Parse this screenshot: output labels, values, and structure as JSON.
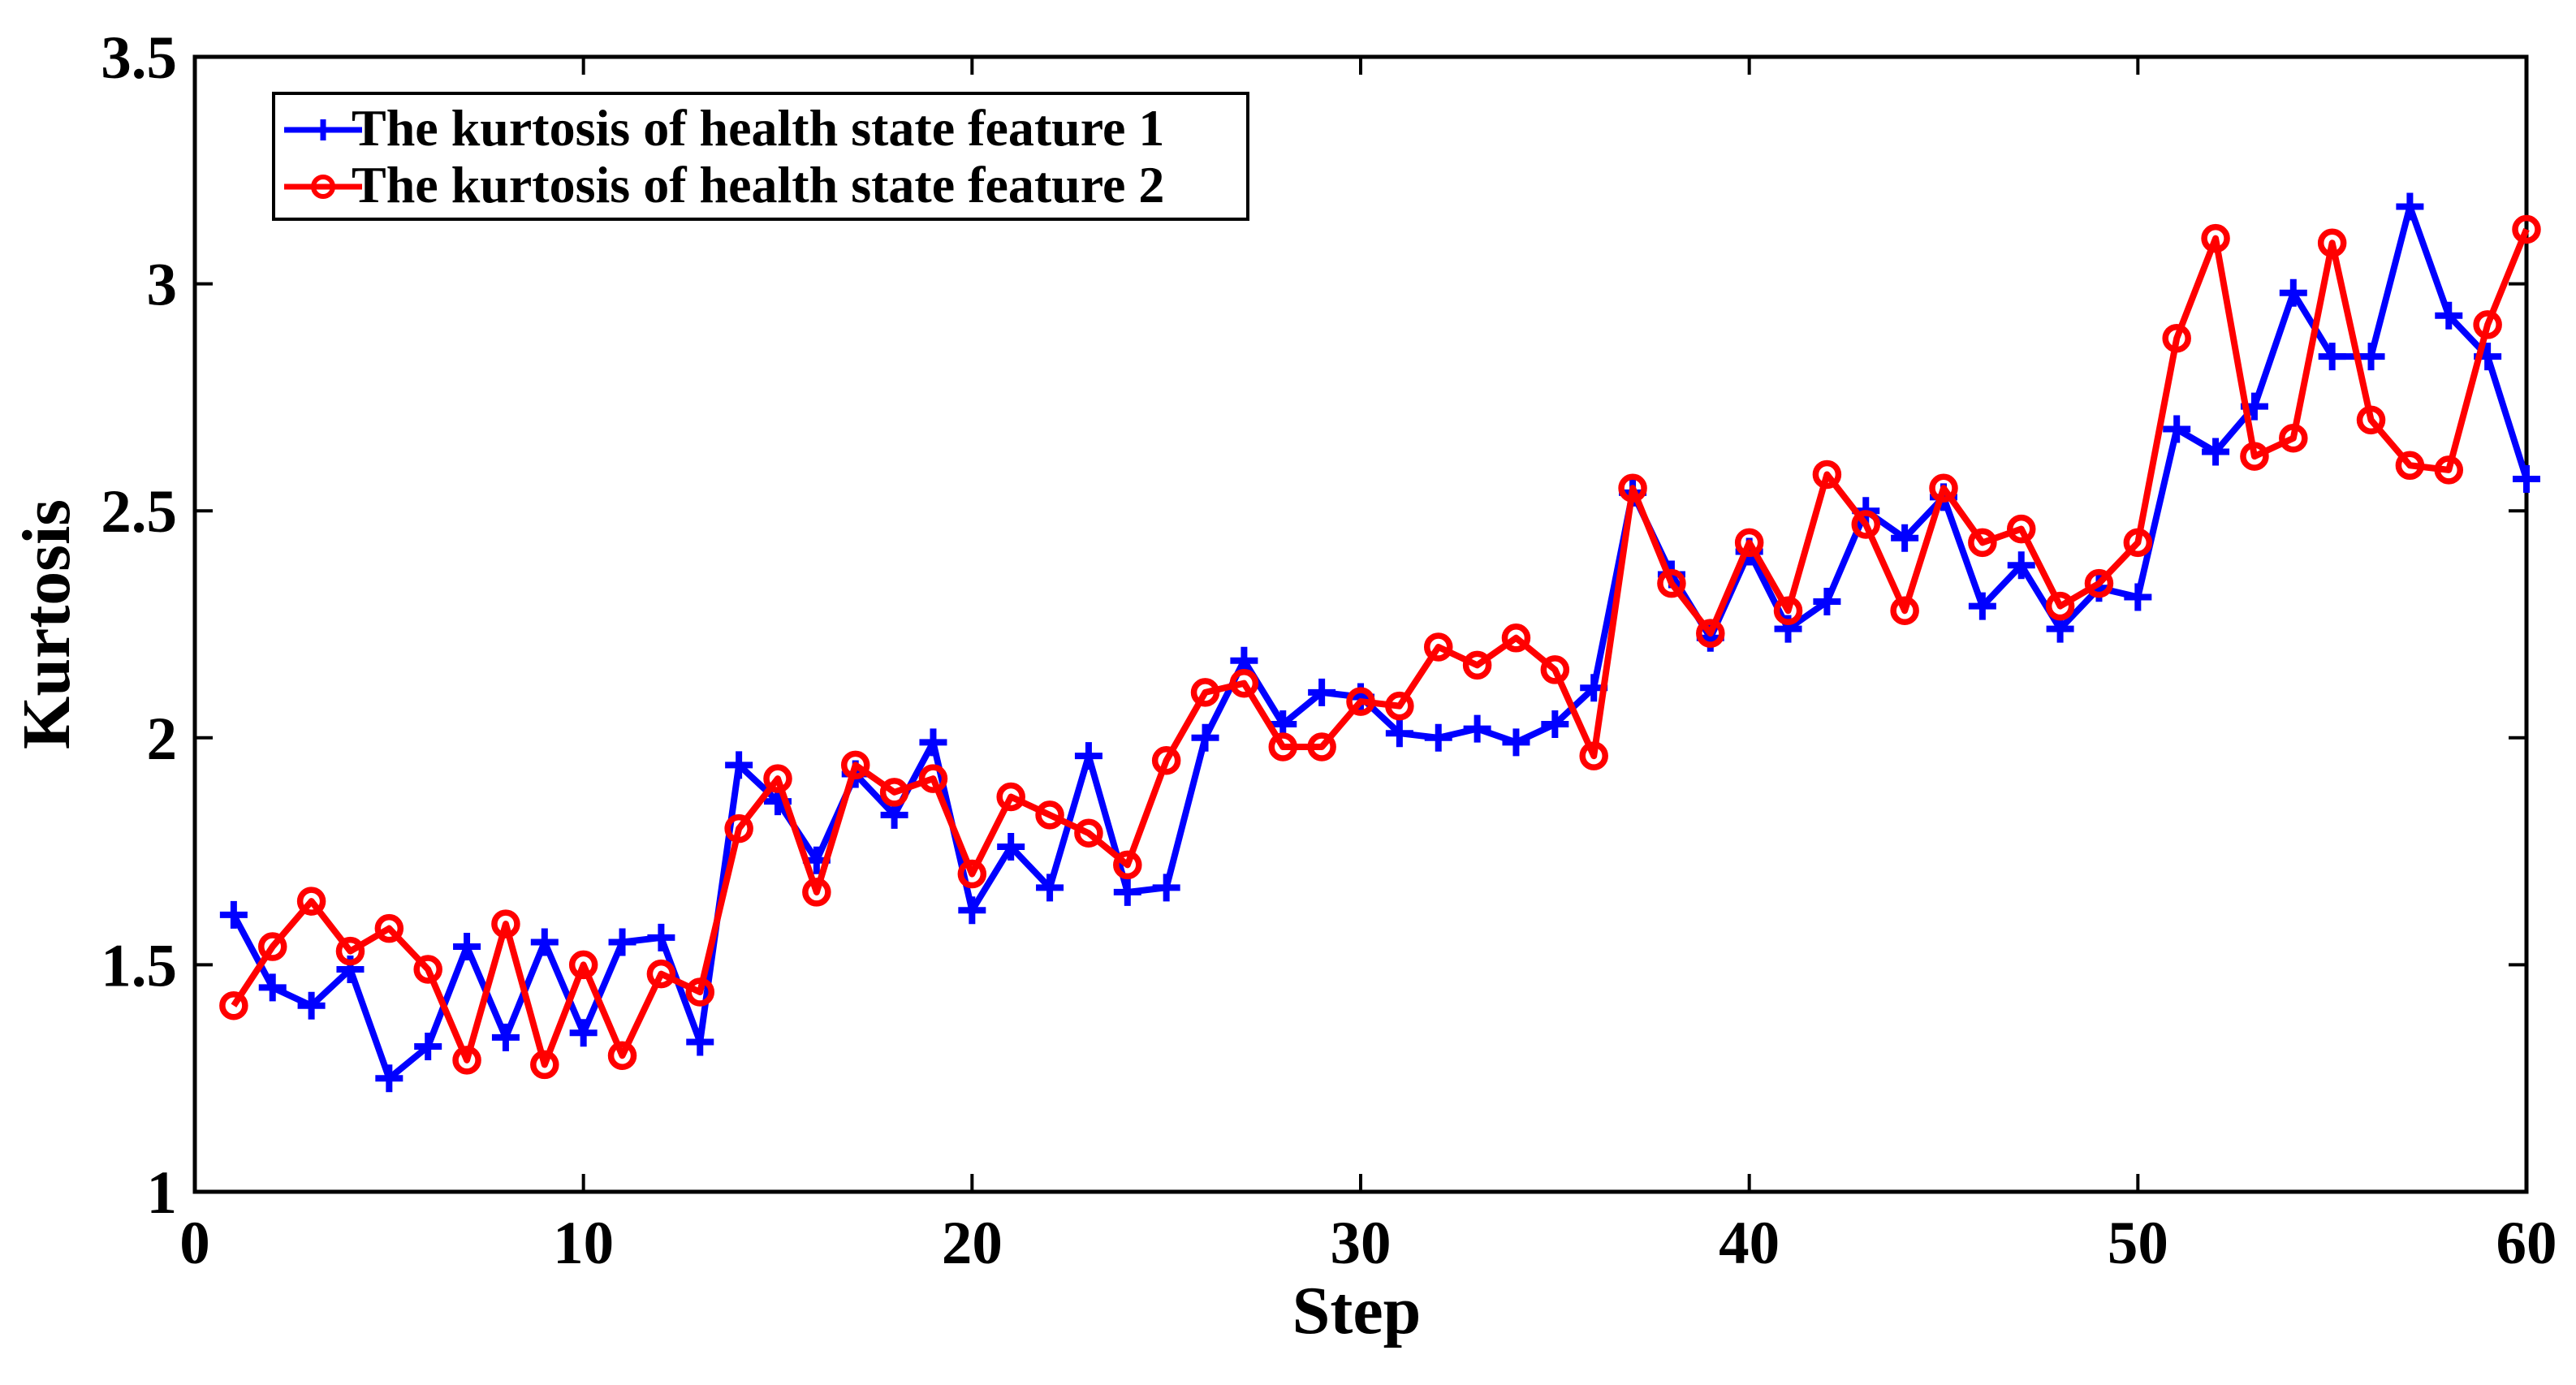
{
  "figure": {
    "background": "#ffffff",
    "text_color": "#000000"
  },
  "legend": {
    "position": "top-left",
    "items": [
      {
        "label": "The kurtosis of health state feature 1",
        "color": "#0000ff",
        "marker": "plus"
      },
      {
        "label": "The kurtosis of health state feature 2",
        "color": "#ff0000",
        "marker": "circle"
      }
    ]
  },
  "chart_data": {
    "type": "line",
    "title": "",
    "xlabel": "Step",
    "ylabel": "Kurtosis",
    "xlim": [
      0,
      60
    ],
    "ylim": [
      1,
      3.5
    ],
    "xticks": [
      0,
      10,
      20,
      30,
      40,
      50,
      60
    ],
    "xtick_labels": [
      "0",
      "10",
      "20",
      "30",
      "40",
      "50",
      "60"
    ],
    "yticks": [
      1,
      1.5,
      2,
      2.5,
      3,
      3.5
    ],
    "ytick_labels": [
      "1",
      "1.5",
      "2",
      "2.5",
      "3",
      "3.5"
    ],
    "grid": false,
    "legend_position": "top-left",
    "x": [
      1,
      2,
      3,
      4,
      5,
      6,
      7,
      8,
      9,
      10,
      11,
      12,
      13,
      14,
      15,
      16,
      17,
      18,
      19,
      20,
      21,
      22,
      23,
      24,
      25,
      26,
      27,
      28,
      29,
      30,
      31,
      32,
      33,
      34,
      35,
      36,
      37,
      38,
      39,
      40,
      41,
      42,
      43,
      44,
      45,
      46,
      47,
      48,
      49,
      50,
      51,
      52,
      53,
      54,
      55,
      56,
      57,
      58,
      59,
      60
    ],
    "series": [
      {
        "name": "The kurtosis of health state feature 1",
        "color": "#0000ff",
        "marker": "plus",
        "values": [
          1.61,
          1.45,
          1.41,
          1.49,
          1.25,
          1.32,
          1.54,
          1.34,
          1.55,
          1.35,
          1.55,
          1.56,
          1.33,
          1.94,
          1.86,
          1.73,
          1.92,
          1.83,
          1.99,
          1.62,
          1.76,
          1.67,
          1.96,
          1.66,
          1.67,
          2.0,
          2.17,
          2.03,
          2.1,
          2.09,
          2.01,
          2.0,
          2.02,
          1.99,
          2.03,
          2.11,
          2.54,
          2.36,
          2.22,
          2.41,
          2.24,
          2.3,
          2.5,
          2.44,
          2.53,
          2.29,
          2.38,
          2.24,
          2.33,
          2.31,
          2.68,
          2.63,
          2.73,
          2.98,
          2.84,
          2.84,
          3.17,
          2.93,
          2.84,
          2.57
        ]
      },
      {
        "name": "The kurtosis of health state feature 2",
        "color": "#ff0000",
        "marker": "circle",
        "values": [
          1.41,
          1.54,
          1.64,
          1.53,
          1.58,
          1.49,
          1.29,
          1.59,
          1.28,
          1.5,
          1.3,
          1.48,
          1.44,
          1.8,
          1.91,
          1.66,
          1.94,
          1.88,
          1.91,
          1.7,
          1.87,
          1.83,
          1.79,
          1.72,
          1.95,
          2.1,
          2.12,
          1.98,
          1.98,
          2.08,
          2.07,
          2.2,
          2.16,
          2.22,
          2.15,
          1.96,
          2.55,
          2.34,
          2.23,
          2.43,
          2.28,
          2.58,
          2.47,
          2.28,
          2.55,
          2.43,
          2.46,
          2.29,
          2.34,
          2.43,
          2.88,
          3.1,
          2.62,
          2.66,
          3.09,
          2.7,
          2.6,
          2.59,
          2.91,
          3.12
        ]
      }
    ]
  }
}
